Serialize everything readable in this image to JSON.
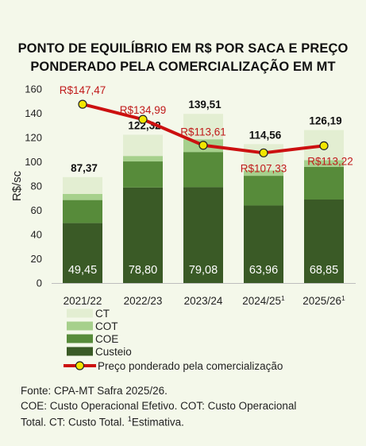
{
  "title_line1": "PONTO DE EQUILÍBRIO EM R$ POR SACA E PREÇO",
  "title_line2": "PONDERADO PELA COMERCIALIZAÇÃO EM MT",
  "notes": {
    "source": "Fonte: CPA-MT Safra 2025/26.",
    "line2": "COE: Custo Operacional Efetivo. COT: Custo Operacional",
    "line3_a": "Total. CT: Custo Total. ",
    "line3_sup": "1",
    "line3_b": "Estimativa."
  },
  "colors": {
    "custeio": "#3a5a26",
    "coe": "#578b3a",
    "cot": "#a6d08c",
    "ct": "#e3eed2",
    "price_line": "#cc1010",
    "price_marker": "#f2e600",
    "price_label": "#c01a1a"
  },
  "chart_data": {
    "type": "bar",
    "stacked": true,
    "ylabel": "R$/sc",
    "ylim": [
      0,
      160
    ],
    "yticks": [
      0,
      20,
      40,
      60,
      80,
      100,
      120,
      140,
      160
    ],
    "grid": false,
    "legend_position": "bottom",
    "categories": [
      {
        "label": "2021/22",
        "sup": ""
      },
      {
        "label": "2022/23",
        "sup": ""
      },
      {
        "label": "2023/24",
        "sup": ""
      },
      {
        "label": "2024/25",
        "sup": "1"
      },
      {
        "label": "2025/26",
        "sup": "1"
      }
    ],
    "series": [
      {
        "name": "Custeio",
        "key": "custeio",
        "values": [
          49.45,
          78.8,
          79.08,
          63.96,
          68.85
        ],
        "labels": [
          "49,45",
          "78,80",
          "79,08",
          "63,96",
          "68,85"
        ]
      },
      {
        "name": "COE",
        "key": "coe",
        "values": [
          19.0,
          21.5,
          29.0,
          24.5,
          27.0
        ]
      },
      {
        "name": "COT",
        "key": "cot",
        "values": [
          5.0,
          4.5,
          10.5,
          4.5,
          5.5
        ]
      },
      {
        "name": "CT",
        "key": "ct",
        "values": [
          13.92,
          17.52,
          20.93,
          21.6,
          24.84
        ]
      }
    ],
    "totals": [
      87.37,
      122.32,
      139.51,
      114.56,
      126.19
    ],
    "total_labels": [
      "87,37",
      "122,32",
      "139,51",
      "114,56",
      "126,19"
    ],
    "price": {
      "name": "Preço ponderado pela comercialização",
      "type": "line",
      "values": [
        147.47,
        134.99,
        113.61,
        107.33,
        113.22
      ],
      "labels": [
        "R$147,47",
        "R$134,99",
        "R$113,61",
        "R$107,33",
        "R$113,22"
      ]
    },
    "legend": [
      "CT",
      "COT",
      "COE",
      "Custeio",
      "Preço ponderado pela comercialização"
    ]
  }
}
